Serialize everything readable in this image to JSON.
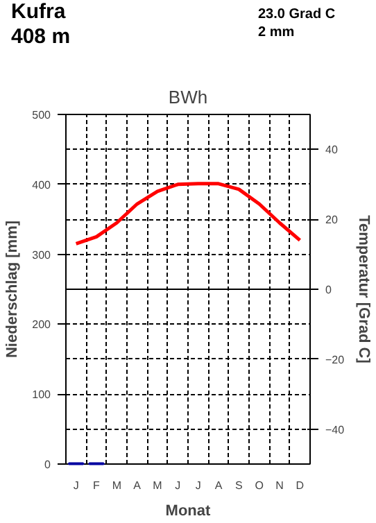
{
  "chart_data": {
    "type": "bar",
    "title": "BWh",
    "annotations": [
      "Kufra",
      "408 m",
      "23.0 Grad C",
      "2 mm"
    ],
    "xlabel": "Monat",
    "ylabel": "Niederschlag [mm]",
    "y2label": "Temperatur [Grad C]",
    "categories": [
      "J",
      "F",
      "M",
      "A",
      "M",
      "J",
      "J",
      "A",
      "S",
      "O",
      "N",
      "D"
    ],
    "series": [
      {
        "color": "#0000a0",
        "values": [
          1,
          1,
          0,
          0,
          0,
          0,
          0,
          0,
          0,
          0,
          0,
          0
        ]
      },
      {
        "type": "line",
        "axis": "y2",
        "color": "#ff0000",
        "values": [
          13,
          15,
          19,
          24.4,
          28,
          30,
          30.2,
          30.2,
          28.6,
          24.4,
          19,
          14
        ]
      }
    ],
    "ylim": [
      0,
      500
    ],
    "yticks": [
      0,
      100,
      200,
      300,
      400,
      500
    ],
    "y2lim": [
      -50,
      50
    ],
    "y2ticks": [
      -40,
      -20,
      0,
      20,
      40
    ],
    "ref_lines": [
      {
        "axis": "y2",
        "value": 0,
        "color": "#000000"
      }
    ],
    "grid": true,
    "marker": "none",
    "line_style": "solid"
  }
}
